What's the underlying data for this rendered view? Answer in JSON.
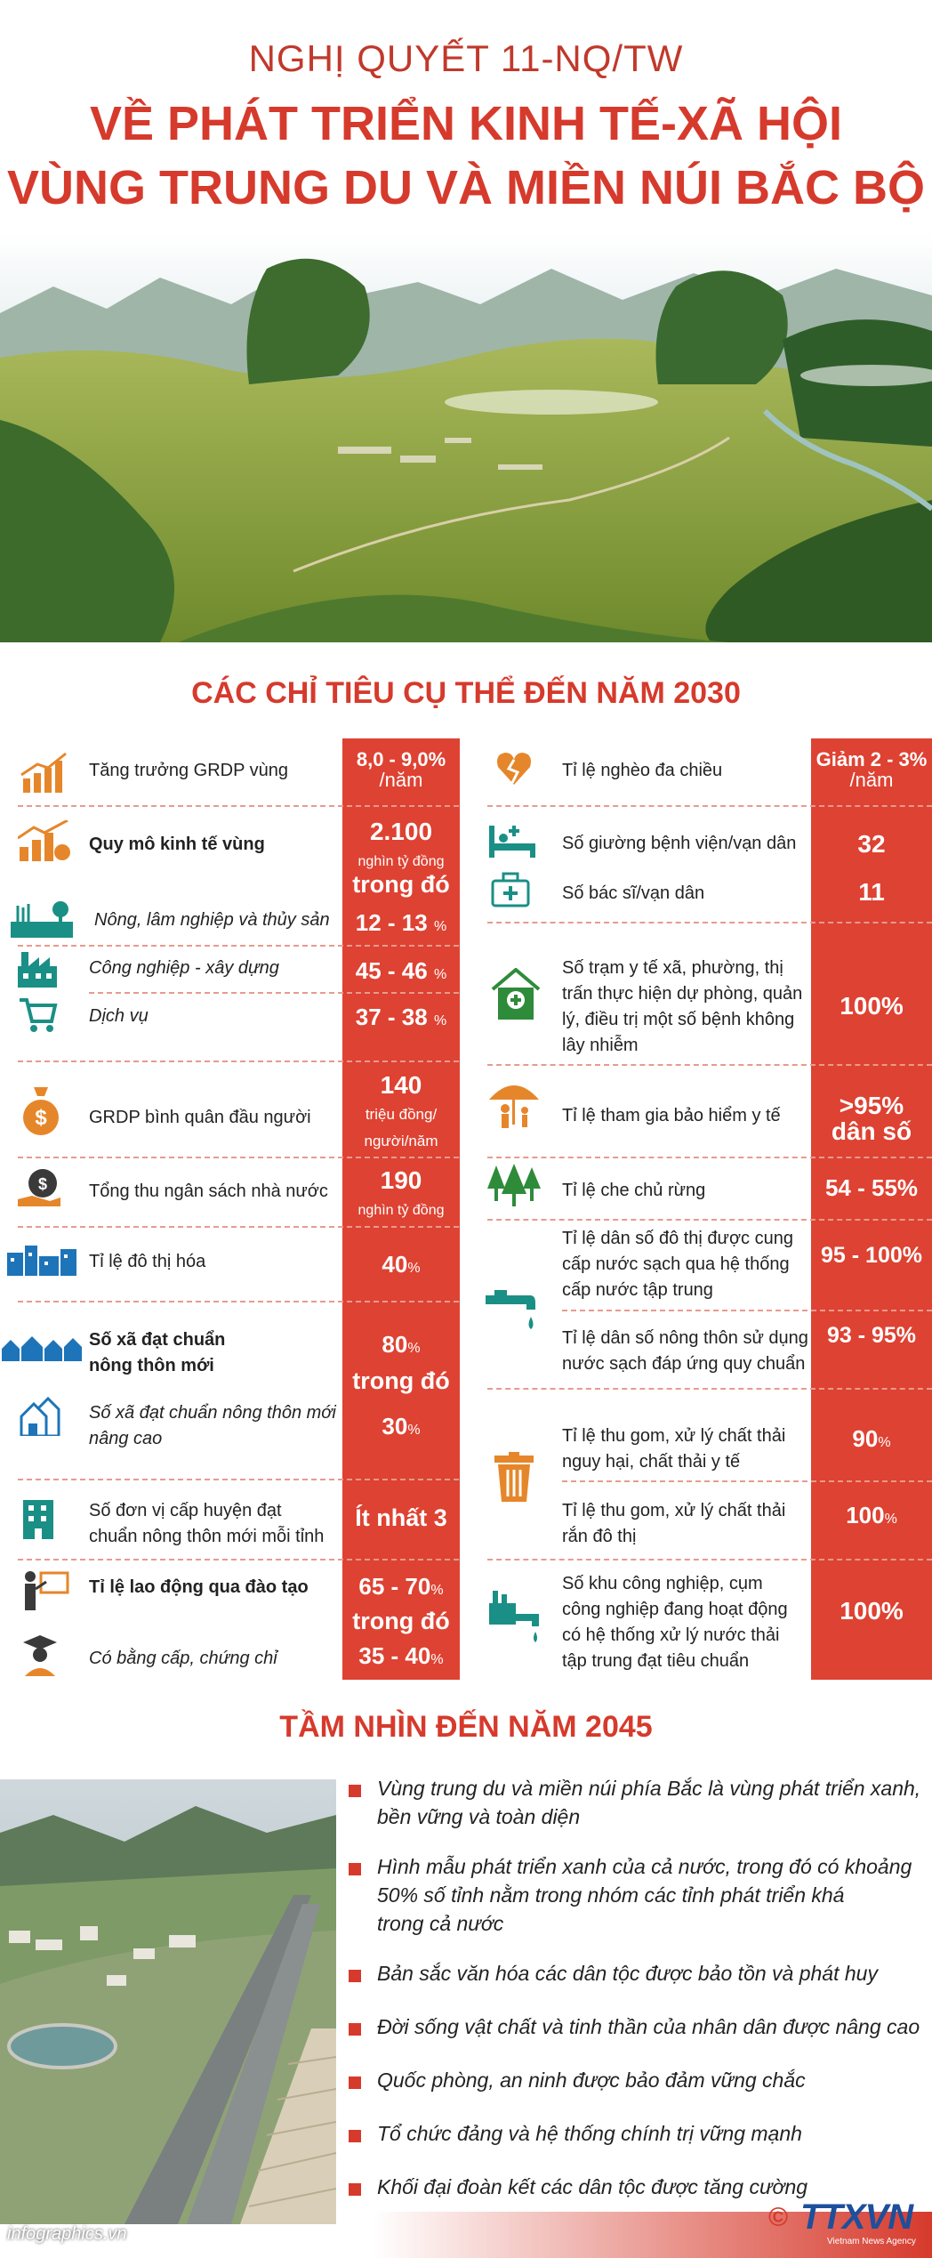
{
  "header": {
    "line1": "NGHỊ QUYẾT 11-NQ/TW",
    "line2": "VỀ PHÁT TRIỂN KINH TẾ-XÃ HỘI",
    "line3": "VÙNG TRUNG DU VÀ MIỀN NÚI BẮC BỘ"
  },
  "targets": {
    "title": "CÁC CHỈ TIÊU CỤ THỂ ĐẾN NĂM 2030",
    "left": {
      "grdp_growth": {
        "label": "Tăng trưởng GRDP vùng",
        "value": "8,0 - 9,0%",
        "unit": "/năm"
      },
      "scale": {
        "label": "Quy mô kinh tế vùng",
        "value": "2.100",
        "unit": "nghìn tỷ đồng",
        "of_which": "trong đó"
      },
      "agri": {
        "label": "Nông, lâm nghiệp và thủy sản",
        "value": "12 - 13",
        "unit": "%"
      },
      "industry": {
        "label": "Công nghiệp - xây dựng",
        "value": "45 - 46",
        "unit": "%"
      },
      "services": {
        "label": "Dịch vụ",
        "value": "37 - 38",
        "unit": "%"
      },
      "grdp_per_capita": {
        "label": "GRDP bình quân đầu người",
        "value": "140",
        "unit1": "triệu đồng/",
        "unit2": "người/năm"
      },
      "budget": {
        "label": "Tổng thu ngân sách nhà nước",
        "value": "190",
        "unit": "nghìn tỷ đồng"
      },
      "urban": {
        "label": "Tỉ lệ đô thị hóa",
        "value": "40",
        "unit": "%"
      },
      "ntm": {
        "label1": "Số xã đạt chuẩn",
        "label2": "nông thôn mới",
        "value": "80",
        "unit": "%",
        "of_which": "trong đó"
      },
      "ntm_adv": {
        "label1": "Số xã đạt chuẩn nông thôn mới",
        "label2": "nâng cao",
        "value": "30",
        "unit": "%"
      },
      "district": {
        "label1": "Số đơn vị cấp huyện đạt",
        "label2": "chuẩn nông thôn mới mỗi tỉnh",
        "value": "Ít nhất 3"
      },
      "trained": {
        "label": "Tỉ lệ lao động qua đào tạo",
        "value": "65 - 70",
        "unit": "%",
        "of_which": "trong đó"
      },
      "certified": {
        "label": "Có bằng cấp, chứng chỉ",
        "value": "35 - 40",
        "unit": "%"
      }
    },
    "right": {
      "poverty": {
        "label": "Tỉ lệ nghèo đa chiều",
        "value1": "Giảm 2 - 3%",
        "value2": "/năm"
      },
      "beds": {
        "label": "Số giường bệnh viện/vạn dân",
        "value": "32"
      },
      "doctors": {
        "label": "Số bác sĩ/vạn dân",
        "value": "11"
      },
      "stations": {
        "l1": "Số trạm y tế xã, phường, thị",
        "l2": "trấn thực hiện dự phòng, quản",
        "l3": "lý, điều trị một số bệnh không",
        "l4": "lây nhiễm",
        "value": "100%"
      },
      "insurance": {
        "label": "Tỉ lệ tham gia bảo hiểm y tế",
        "value1": ">95%",
        "value2": "dân số"
      },
      "forest": {
        "label": "Tỉ lệ che chủ rừng",
        "value": "54 - 55%"
      },
      "urban_water": {
        "l1": "Tỉ lệ dân số đô thị được cung",
        "l2": "cấp nước sạch qua hệ thống",
        "l3": "cấp nước tập trung",
        "value": "95 - 100%"
      },
      "rural_water": {
        "l1": "Tỉ lệ dân số nông thôn sử dụng",
        "l2": "nước sạch đáp ứng quy chuẩn",
        "value": "93 - 95%"
      },
      "hazard_waste": {
        "l1": "Tỉ lệ thu gom, xử lý chất thải",
        "l2": "nguy hại, chất thải y tế",
        "value": "90",
        "unit": "%"
      },
      "solid_waste": {
        "l1": "Tỉ lệ thu gom, xử lý chất thải",
        "l2": "rắn đô thị",
        "value": "100",
        "unit": "%"
      },
      "industrial": {
        "l1": "Số khu công nghiệp, cụm",
        "l2": "công nghiệp đang hoạt động",
        "l3": "có hệ thống xử lý nước thải",
        "l4": "tập trung đạt tiêu chuẩn",
        "value": "100%"
      }
    }
  },
  "vision": {
    "title": "TẦM NHÌN ĐẾN NĂM 2045",
    "items": [
      {
        "l1": "Vùng trung du và miền núi phía Bắc là vùng phát triển xanh,",
        "l2": "bền vững và toàn diện"
      },
      {
        "l1": "Hình mẫu phát triển xanh của cả nước, trong đó có khoảng",
        "l2": "50% số tỉnh nằm trong nhóm các tỉnh phát triển khá",
        "l3": "trong cả nước"
      },
      {
        "l1": "Bản sắc văn hóa các dân tộc được bảo tồn và phát huy"
      },
      {
        "l1": "Đời sống vật chất và tinh thần của nhân dân được nâng cao"
      },
      {
        "l1": "Quốc phòng, an ninh được bảo đảm vững chắc"
      },
      {
        "l1": "Tổ chức đảng và hệ thống chính trị vững mạnh"
      },
      {
        "l1": "Khối đại đoàn kết các dân tộc được tăng cường"
      }
    ]
  },
  "footer": {
    "site": "infographics.vn",
    "copyright": "©",
    "logo": "TTXVN",
    "agency": "Vietnam News Agency"
  },
  "colors": {
    "red": "#de4232",
    "title_red": "#d63a2c",
    "icon_orange": "#e6862a",
    "icon_teal": "#1a8f86",
    "icon_blue": "#1d74b8",
    "icon_green": "#2e8b3a"
  }
}
